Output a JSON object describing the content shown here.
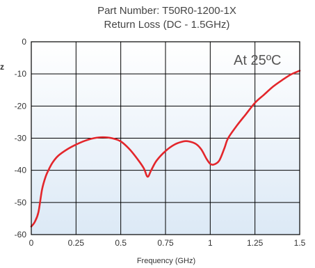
{
  "chart_data": {
    "type": "line",
    "title": "Part Number: T50R0-1200-1X",
    "subtitle": "Return Loss (DC - 1.5GHz)",
    "xlabel": "Frequency (GHz)",
    "ylabel_fragment": "z",
    "annotation": "At 25ºC",
    "xlim": [
      0,
      1.5
    ],
    "ylim": [
      -60,
      0
    ],
    "x_ticks": [
      0,
      0.25,
      0.5,
      0.75,
      1,
      1.25,
      1.5
    ],
    "x_tick_labels": [
      "0",
      "0.25",
      "0.5",
      "0.75",
      "1",
      "1.25",
      "1.5"
    ],
    "y_ticks": [
      0,
      -10,
      -20,
      -30,
      -40,
      -50,
      -60
    ],
    "y_tick_labels": [
      "0",
      "-10",
      "-20",
      "-30",
      "-40",
      "-50",
      "-60"
    ],
    "grid": true,
    "series": [
      {
        "color": "#e3262b",
        "x": [
          0,
          0.02,
          0.04,
          0.06,
          0.08,
          0.1,
          0.12,
          0.15,
          0.2,
          0.25,
          0.3,
          0.35,
          0.4,
          0.45,
          0.5,
          0.55,
          0.6,
          0.63,
          0.65,
          0.67,
          0.7,
          0.75,
          0.8,
          0.85,
          0.88,
          0.92,
          0.95,
          0.98,
          1.0,
          1.02,
          1.05,
          1.08,
          1.1,
          1.15,
          1.2,
          1.25,
          1.3,
          1.35,
          1.4,
          1.45,
          1.5
        ],
        "y": [
          -57.5,
          -56,
          -53,
          -46,
          -42,
          -39.5,
          -37.5,
          -35.5,
          -33.5,
          -32,
          -30.8,
          -30,
          -29.7,
          -30,
          -31,
          -33.5,
          -37,
          -39.5,
          -42,
          -40,
          -37,
          -34,
          -32,
          -31,
          -31,
          -31.8,
          -33.5,
          -36.5,
          -38,
          -38.2,
          -37,
          -33,
          -30,
          -26,
          -22.5,
          -19,
          -16.5,
          -14,
          -12,
          -10.2,
          -9
        ]
      }
    ],
    "background": "gradient-blue",
    "line_color": "#e3262b"
  }
}
